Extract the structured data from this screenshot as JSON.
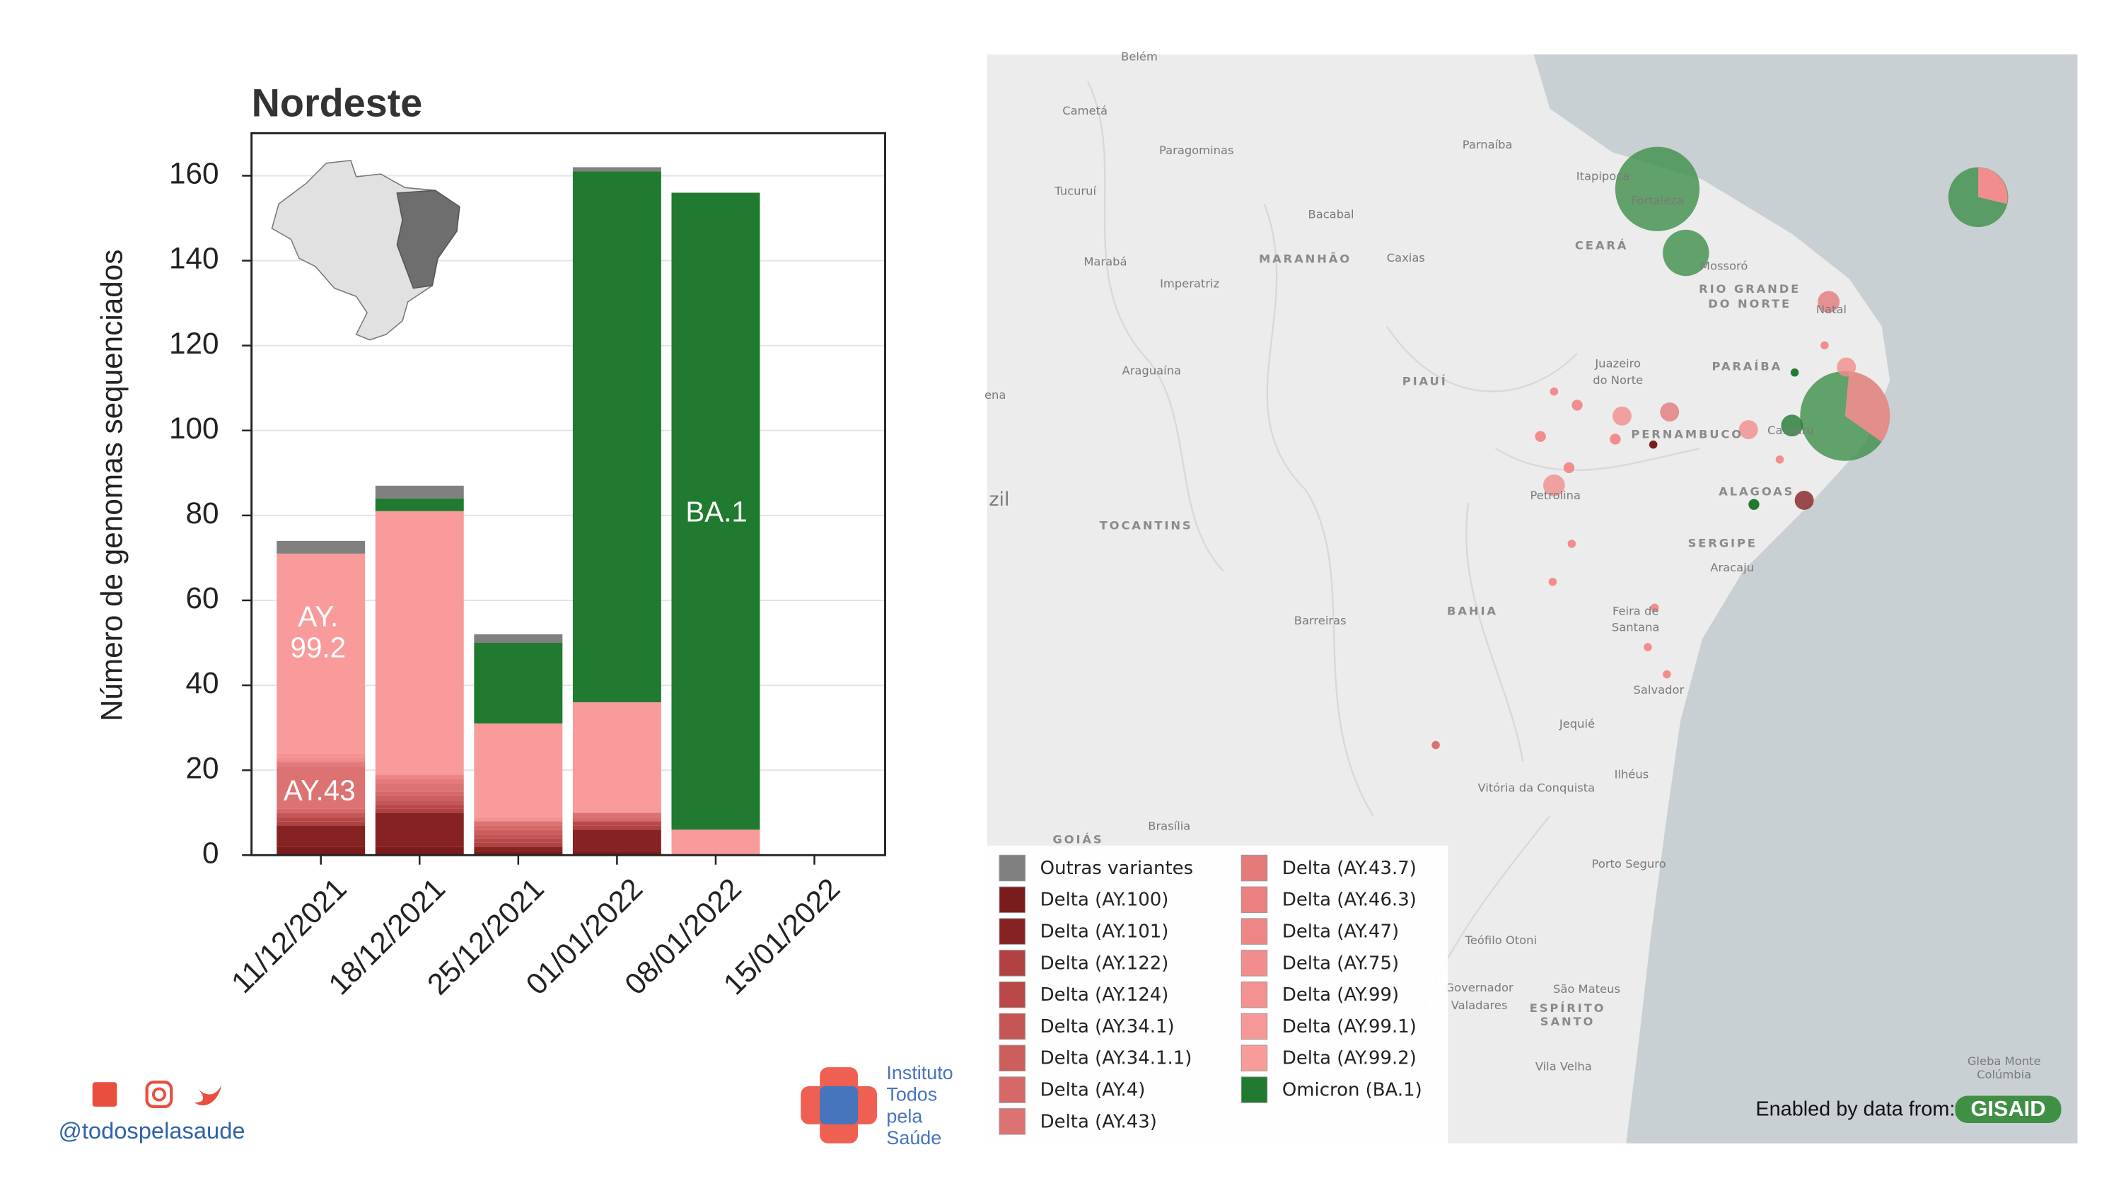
{
  "chart_data": {
    "type": "bar",
    "stacked": true,
    "title": "Nordeste",
    "ylabel": "Número de genomas sequenciados",
    "categories": [
      "11/12/2021",
      "18/12/2021",
      "25/12/2021",
      "01/01/2022",
      "08/01/2022",
      "15/01/2022"
    ],
    "series": [
      {
        "name": "Delta (AY.100)",
        "color": "#7b1c1c",
        "values": [
          2,
          2,
          1,
          1,
          0,
          0
        ]
      },
      {
        "name": "Delta (AY.101)",
        "color": "#862222",
        "values": [
          5,
          8,
          1,
          5,
          0,
          0
        ]
      },
      {
        "name": "Delta (AY.122)",
        "color": "#b24242",
        "values": [
          1,
          1,
          1,
          1,
          0,
          0
        ]
      },
      {
        "name": "Delta (AY.124)",
        "color": "#ba4848",
        "values": [
          1,
          1,
          1,
          1,
          0,
          0
        ]
      },
      {
        "name": "Delta (AY.34.1)",
        "color": "#c65656",
        "values": [
          1,
          1,
          1,
          0,
          0,
          0
        ]
      },
      {
        "name": "Delta (AY.34.1.1)",
        "color": "#cc5e5e",
        "values": [
          0,
          1,
          1,
          0,
          0,
          0
        ]
      },
      {
        "name": "Delta (AY.4)",
        "color": "#d66868",
        "values": [
          1,
          1,
          1,
          1,
          0,
          0
        ]
      },
      {
        "name": "Delta (AY.43)",
        "color": "#dc7272",
        "values": [
          10,
          2,
          1,
          1,
          0,
          0
        ]
      },
      {
        "name": "Delta (AY.43.7)",
        "color": "#e47a7a",
        "values": [
          1,
          1,
          0,
          0,
          0,
          0
        ]
      },
      {
        "name": "Delta (AY.46.3)",
        "color": "#ea8080",
        "values": [
          0,
          0,
          0,
          0,
          0,
          0
        ]
      },
      {
        "name": "Delta (AY.47)",
        "color": "#ee8686",
        "values": [
          0,
          1,
          0,
          0,
          0,
          0
        ]
      },
      {
        "name": "Delta (AY.75)",
        "color": "#f28d8d",
        "values": [
          1,
          0,
          0,
          0,
          0,
          0
        ]
      },
      {
        "name": "Delta (AY.99)",
        "color": "#f49292",
        "values": [
          1,
          0,
          1,
          0,
          0,
          0
        ]
      },
      {
        "name": "Delta (AY.99.1)",
        "color": "#f79898",
        "values": [
          0,
          0,
          0,
          0,
          0,
          0
        ]
      },
      {
        "name": "Delta (AY.99.2)",
        "color": "#f99b9b",
        "values": [
          47,
          62,
          22,
          26,
          6,
          0
        ]
      },
      {
        "name": "Omicron (BA.1)",
        "color": "#207a2f",
        "values": [
          0,
          3,
          19,
          125,
          150,
          0
        ]
      },
      {
        "name": "Outras variantes",
        "color": "#808080",
        "values": [
          3,
          3,
          2,
          1,
          0,
          0
        ]
      }
    ],
    "ylim": [
      0,
      170
    ],
    "yticks": [
      0,
      20,
      40,
      60,
      80,
      100,
      120,
      140,
      160
    ],
    "grid": true,
    "annotations": [
      {
        "text": [
          "AY.",
          "99.2"
        ]
      },
      {
        "text": [
          "AY.43"
        ]
      },
      {
        "text": [
          "BA.1"
        ]
      }
    ]
  },
  "map": {
    "labels": [
      "Belém",
      "Cametá",
      "Paragominas",
      "Parnaíba",
      "Tucuruí",
      "Bacabal",
      "Itapipoca",
      "Fortaleza",
      "CEARÁ",
      "MARANHÃO",
      "Caxias",
      "Marabá",
      "Imperatriz",
      "Mossoró",
      "RIO GRANDE",
      "DO NORTE",
      "Natal",
      "Juazeiro",
      "do Norte",
      "PARAÍBA",
      "Araguaína",
      "PIAUÍ",
      "PERNAMBUCO",
      "Caruaru",
      "TOCANTINS",
      "Petrolina",
      "ALAGOAS",
      "SERGIPE",
      "Aracaju",
      "Barreiras",
      "BAHIA",
      "Feira de",
      "Santana",
      "Salvador",
      "Jequié",
      "Vitória da Conquista",
      "Ilhéus",
      "GOIÁS",
      "Brasília",
      "Porto Seguro",
      "Teófilo Otoni",
      "Governador",
      "Valadares",
      "São Mateus",
      "ESPÍRITO",
      "SANTO",
      "Vila Velha",
      "Gleba Monte",
      "Colúmbia",
      "zil",
      "ena"
    ]
  },
  "footer": {
    "handle": "@todospelasaude",
    "logo": [
      "Instituto",
      "Todos",
      "pela",
      "Saúde"
    ],
    "credit": "Enabled by data from:",
    "credit_logo": "GISAID"
  }
}
